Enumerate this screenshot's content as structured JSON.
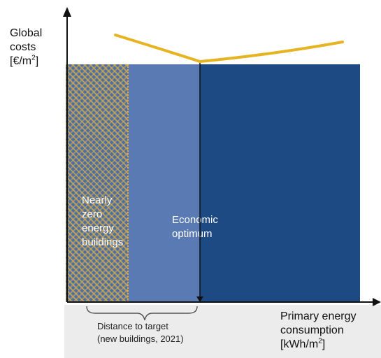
{
  "y_axis": {
    "label_line1": "Global",
    "label_line2": "costs",
    "label_line3_pre": "[€/m",
    "label_sup": "2",
    "label_line3_post": "]"
  },
  "x_axis": {
    "label_line1": "Primary energy",
    "label_line2": "consumption",
    "label_line3_pre": "[kWh/m",
    "label_sup": "2",
    "label_line3_post": "]"
  },
  "zones": {
    "nzeb": "Nearly\nzero\nenergy\nbuildings",
    "optimum": "Economic\noptimum"
  },
  "brace_label": "Distance to target\n(new buildings, 2021)",
  "colors": {
    "curve": "#e6b422",
    "zone_dark": "#1e4a84",
    "zone_mid": "#5a7ab4",
    "hatch": "#d6ab48",
    "axis": "#111111"
  }
}
